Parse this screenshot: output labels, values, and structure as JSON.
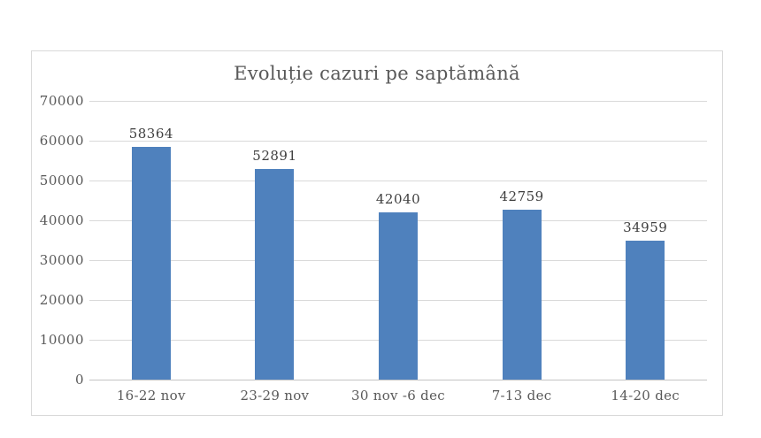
{
  "chart_data": {
    "type": "bar",
    "title": "Evoluție cazuri pe saptămână",
    "categories": [
      "16-22 nov",
      "23-29 nov",
      "30 nov -6 dec",
      "7-13 dec",
      "14-20 dec"
    ],
    "values": [
      58364,
      52891,
      42040,
      42759,
      34959
    ],
    "value_labels": [
      "58364",
      "52891",
      "42040",
      "42759",
      "34959"
    ],
    "xlabel": "",
    "ylabel": "",
    "ylim": [
      0,
      70000
    ],
    "ytick_step": 10000,
    "ytick_labels": [
      "0",
      "10000",
      "20000",
      "30000",
      "40000",
      "50000",
      "60000",
      "70000"
    ],
    "grid": true,
    "legend": false,
    "colors": {
      "bar": "#4F81BD",
      "gridline": "#D9D9D9",
      "axis_line": "#C4C4C4",
      "title": "#595959",
      "tick_label": "#595959",
      "value_label": "#3F3F3F",
      "frame_border": "#D9D9D9",
      "background": "#FFFFFF"
    }
  }
}
